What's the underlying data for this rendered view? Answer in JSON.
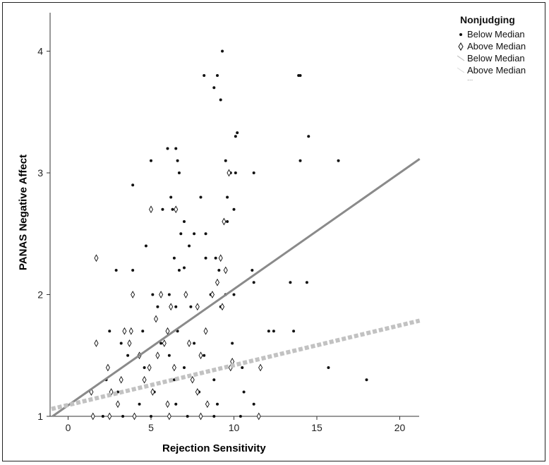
{
  "chart_data": {
    "type": "scatter",
    "xlabel": "Rejection Sensitivity",
    "ylabel": "PANAS Negative Affect",
    "xlim": [
      -1,
      21.2
    ],
    "ylim": [
      1,
      4.3
    ],
    "x_ticks": [
      "0",
      "5",
      "10",
      "15",
      "20"
    ],
    "y_ticks": [
      "1",
      "2",
      "3",
      "4"
    ],
    "legend": {
      "title": "Nonjudging",
      "items": [
        "Below Median",
        "Above Median",
        "Below Median",
        "Above Median"
      ],
      "ellipsis": "..."
    },
    "series": [
      {
        "name": "Below Median",
        "marker": "dot",
        "color": "#111111",
        "points": [
          [
            9.3,
            4.0
          ],
          [
            8.2,
            3.8
          ],
          [
            9.0,
            3.8
          ],
          [
            8.8,
            3.7
          ],
          [
            9.2,
            3.6
          ],
          [
            13.9,
            3.8
          ],
          [
            14.0,
            3.8
          ],
          [
            10.2,
            3.33
          ],
          [
            10.1,
            3.3
          ],
          [
            14.5,
            3.3
          ],
          [
            6.0,
            3.2
          ],
          [
            6.5,
            3.2
          ],
          [
            6.6,
            3.1
          ],
          [
            5.0,
            3.1
          ],
          [
            9.5,
            3.1
          ],
          [
            14.0,
            3.1
          ],
          [
            16.3,
            3.1
          ],
          [
            6.7,
            3.0
          ],
          [
            9.8,
            3.0
          ],
          [
            10.1,
            3.0
          ],
          [
            11.2,
            3.0
          ],
          [
            3.9,
            2.9
          ],
          [
            6.2,
            2.8
          ],
          [
            8.0,
            2.8
          ],
          [
            9.6,
            2.8
          ],
          [
            5.7,
            2.7
          ],
          [
            6.3,
            2.7
          ],
          [
            10.0,
            2.7
          ],
          [
            7.0,
            2.6
          ],
          [
            9.6,
            2.6
          ],
          [
            6.8,
            2.5
          ],
          [
            7.6,
            2.5
          ],
          [
            8.3,
            2.5
          ],
          [
            4.7,
            2.4
          ],
          [
            7.3,
            2.4
          ],
          [
            2.9,
            2.2
          ],
          [
            3.9,
            2.2
          ],
          [
            6.4,
            2.3
          ],
          [
            8.3,
            2.3
          ],
          [
            8.9,
            2.3
          ],
          [
            6.7,
            2.2
          ],
          [
            7.0,
            2.22
          ],
          [
            9.1,
            2.2
          ],
          [
            11.1,
            2.2
          ],
          [
            11.2,
            2.1
          ],
          [
            13.4,
            2.1
          ],
          [
            14.4,
            2.1
          ],
          [
            5.1,
            2.0
          ],
          [
            6.1,
            2.0
          ],
          [
            8.6,
            2.0
          ],
          [
            9.5,
            2.0
          ],
          [
            10.0,
            2.0
          ],
          [
            5.4,
            1.9
          ],
          [
            6.5,
            1.9
          ],
          [
            7.4,
            1.9
          ],
          [
            9.2,
            1.9
          ],
          [
            2.5,
            1.7
          ],
          [
            4.5,
            1.7
          ],
          [
            6.6,
            1.7
          ],
          [
            12.1,
            1.7
          ],
          [
            12.4,
            1.7
          ],
          [
            13.6,
            1.7
          ],
          [
            3.2,
            1.6
          ],
          [
            5.6,
            1.6
          ],
          [
            7.6,
            1.6
          ],
          [
            9.9,
            1.6
          ],
          [
            3.6,
            1.5
          ],
          [
            6.1,
            1.5
          ],
          [
            8.2,
            1.5
          ],
          [
            4.6,
            1.4
          ],
          [
            7.0,
            1.4
          ],
          [
            10.5,
            1.4
          ],
          [
            15.7,
            1.4
          ],
          [
            2.3,
            1.3
          ],
          [
            6.4,
            1.3
          ],
          [
            8.8,
            1.3
          ],
          [
            18.0,
            1.3
          ],
          [
            3.0,
            1.2
          ],
          [
            5.2,
            1.2
          ],
          [
            7.9,
            1.2
          ],
          [
            10.6,
            1.2
          ],
          [
            4.3,
            1.1
          ],
          [
            6.5,
            1.1
          ],
          [
            9.0,
            1.1
          ],
          [
            11.2,
            1.1
          ],
          [
            2.1,
            1.0
          ],
          [
            3.3,
            1.0
          ],
          [
            5.0,
            1.0
          ],
          [
            7.2,
            1.0
          ],
          [
            8.8,
            1.0
          ],
          [
            10.4,
            1.0
          ]
        ]
      },
      {
        "name": "Above Median",
        "marker": "diamond",
        "color": "#111111",
        "points": [
          [
            9.7,
            3.0
          ],
          [
            1.7,
            2.3
          ],
          [
            5.0,
            2.7
          ],
          [
            6.5,
            2.7
          ],
          [
            9.4,
            2.6
          ],
          [
            9.2,
            2.3
          ],
          [
            9.0,
            2.1
          ],
          [
            9.5,
            2.2
          ],
          [
            3.9,
            2.0
          ],
          [
            5.6,
            2.0
          ],
          [
            7.1,
            2.0
          ],
          [
            8.7,
            2.0
          ],
          [
            6.2,
            1.9
          ],
          [
            7.8,
            1.9
          ],
          [
            9.3,
            1.9
          ],
          [
            5.3,
            1.8
          ],
          [
            3.4,
            1.7
          ],
          [
            3.8,
            1.7
          ],
          [
            6.0,
            1.7
          ],
          [
            8.3,
            1.7
          ],
          [
            1.7,
            1.6
          ],
          [
            3.7,
            1.6
          ],
          [
            5.8,
            1.6
          ],
          [
            7.3,
            1.6
          ],
          [
            4.3,
            1.5
          ],
          [
            5.4,
            1.5
          ],
          [
            8.0,
            1.5
          ],
          [
            2.4,
            1.4
          ],
          [
            4.9,
            1.4
          ],
          [
            6.4,
            1.4
          ],
          [
            9.9,
            1.45
          ],
          [
            11.6,
            1.4
          ],
          [
            3.2,
            1.3
          ],
          [
            4.6,
            1.3
          ],
          [
            7.5,
            1.3
          ],
          [
            9.8,
            1.4
          ],
          [
            1.4,
            1.2
          ],
          [
            2.6,
            1.2
          ],
          [
            5.1,
            1.2
          ],
          [
            7.8,
            1.2
          ],
          [
            3.0,
            1.1
          ],
          [
            6.0,
            1.1
          ],
          [
            8.4,
            1.1
          ],
          [
            1.5,
            1.0
          ],
          [
            2.5,
            1.0
          ],
          [
            4.0,
            1.0
          ],
          [
            6.1,
            1.0
          ],
          [
            8.0,
            1.0
          ],
          [
            11.5,
            1.0
          ]
        ]
      }
    ],
    "fit_lines": [
      {
        "name": "Below Median",
        "color": "#8a8a8a",
        "style": "solid",
        "intercept": 1.09,
        "slope": 0.0955
      },
      {
        "name": "Above Median",
        "color": "#c2c2c2",
        "style": "dotted",
        "intercept": 1.093,
        "slope": 0.0327
      }
    ]
  }
}
